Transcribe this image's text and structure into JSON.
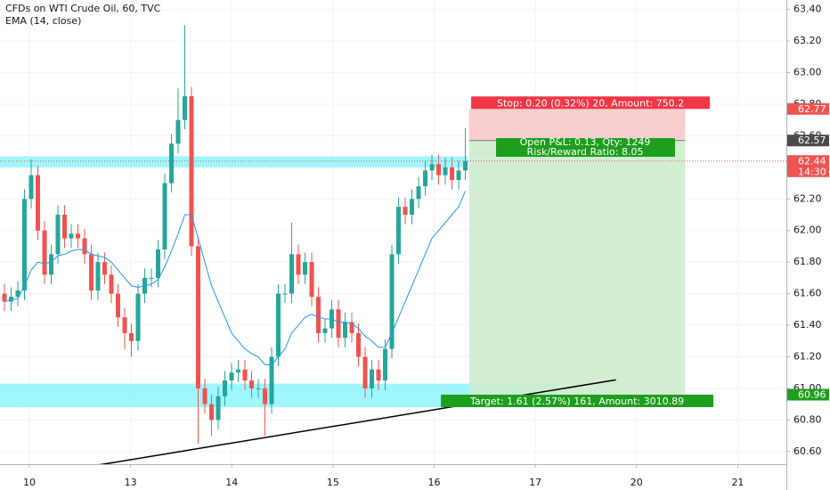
{
  "chart_data": {
    "type": "candlestick",
    "title": "CFDs on WTI Crude Oil, 60, TVC",
    "up_color": "#26a69a",
    "down_color": "#ef5350",
    "x": [
      -0.246,
      -0.18,
      -0.114,
      -0.048,
      0.018,
      0.084,
      0.15,
      0.216,
      0.282,
      0.348,
      0.414,
      0.48,
      0.546,
      0.612,
      0.678,
      0.744,
      0.81,
      0.876,
      0.942,
      1.008,
      1.074,
      1.14,
      1.206,
      1.272,
      1.338,
      1.404,
      1.47,
      1.536,
      1.602,
      1.668,
      1.734,
      1.8,
      1.866,
      1.932,
      1.998,
      2.064,
      2.13,
      2.196,
      2.262,
      2.328,
      2.394,
      2.46,
      2.526,
      2.592,
      2.658,
      2.724,
      2.79,
      2.856,
      2.922,
      2.988,
      3.054,
      3.12,
      3.186,
      3.252,
      3.318,
      3.384,
      3.45,
      3.516,
      3.582,
      3.648,
      3.714,
      3.78,
      3.846,
      3.912,
      3.978,
      4.044,
      4.11,
      4.176,
      4.242,
      4.308
    ],
    "open": [
      61.6,
      61.55,
      61.58,
      61.62,
      62.2,
      62.35,
      62.0,
      61.72,
      61.85,
      62.1,
      61.95,
      61.98,
      61.95,
      61.85,
      61.62,
      61.8,
      61.72,
      61.6,
      61.45,
      61.35,
      61.3,
      61.6,
      61.7,
      61.7,
      61.88,
      62.3,
      62.55,
      62.7,
      62.85,
      61.9,
      61.0,
      60.9,
      60.8,
      60.95,
      61.05,
      61.1,
      61.12,
      61.05,
      61.0,
      61.0,
      60.9,
      61.2,
      61.6,
      61.6,
      61.85,
      61.72,
      61.8,
      61.58,
      61.35,
      61.38,
      61.5,
      61.32,
      61.42,
      61.35,
      61.2,
      61.0,
      61.12,
      61.05,
      61.25,
      61.85,
      62.15,
      62.1,
      62.2,
      62.28,
      62.38,
      62.42,
      62.35,
      62.4,
      62.32,
      62.38
    ],
    "high": [
      61.66,
      61.64,
      61.68,
      62.26,
      62.45,
      62.41,
      62.06,
      61.91,
      62.16,
      62.16,
      62.04,
      62.04,
      62.01,
      61.91,
      61.86,
      61.86,
      61.78,
      61.66,
      61.51,
      61.41,
      61.66,
      61.76,
      61.76,
      61.94,
      62.36,
      62.61,
      62.9,
      63.3,
      62.91,
      61.96,
      61.06,
      60.96,
      61.01,
      61.11,
      61.16,
      61.18,
      61.18,
      61.11,
      61.06,
      61.06,
      61.26,
      61.66,
      61.66,
      62.05,
      61.91,
      61.86,
      61.86,
      61.64,
      61.44,
      61.56,
      61.56,
      61.48,
      61.48,
      61.41,
      61.26,
      61.18,
      61.18,
      61.31,
      61.91,
      62.21,
      62.21,
      62.26,
      62.34,
      62.44,
      62.48,
      62.48,
      62.46,
      62.46,
      62.44,
      62.65
    ],
    "low": [
      61.49,
      61.49,
      61.52,
      61.56,
      62.14,
      61.94,
      61.66,
      61.66,
      61.79,
      61.89,
      61.89,
      61.89,
      61.79,
      61.56,
      61.56,
      61.66,
      61.54,
      61.39,
      61.25,
      61.2,
      61.24,
      61.54,
      61.64,
      61.64,
      61.82,
      62.24,
      62.49,
      62.64,
      61.84,
      60.65,
      60.84,
      60.7,
      60.74,
      60.89,
      60.99,
      61.04,
      60.99,
      60.94,
      60.94,
      60.7,
      60.84,
      61.14,
      61.54,
      61.54,
      61.66,
      61.66,
      61.52,
      61.29,
      61.29,
      61.32,
      61.26,
      61.26,
      61.29,
      61.14,
      60.94,
      60.94,
      60.99,
      60.99,
      61.19,
      61.79,
      62.04,
      62.04,
      62.14,
      62.22,
      62.32,
      62.29,
      62.29,
      62.26,
      62.26,
      62.32
    ],
    "close": [
      61.55,
      61.58,
      61.62,
      62.2,
      62.35,
      62.0,
      61.72,
      61.85,
      62.1,
      61.95,
      61.98,
      61.95,
      61.85,
      61.62,
      61.8,
      61.72,
      61.6,
      61.45,
      61.35,
      61.3,
      61.6,
      61.7,
      61.7,
      61.88,
      62.3,
      62.55,
      62.7,
      62.85,
      61.9,
      61.0,
      60.9,
      60.8,
      60.95,
      61.05,
      61.1,
      61.12,
      61.05,
      61.0,
      61.0,
      60.9,
      61.2,
      61.6,
      61.6,
      61.85,
      61.72,
      61.8,
      61.58,
      61.35,
      61.38,
      61.5,
      61.32,
      61.42,
      61.35,
      61.2,
      61.0,
      61.12,
      61.05,
      61.25,
      61.85,
      62.15,
      62.1,
      62.2,
      62.28,
      62.38,
      62.42,
      62.35,
      62.4,
      62.32,
      62.38,
      62.44
    ],
    "series": [
      {
        "name": "EMA (14, close)",
        "color": "#2196f3",
        "values": [
          61.55,
          61.56,
          61.57,
          61.65,
          61.75,
          61.8,
          61.79,
          61.8,
          61.84,
          61.85,
          61.87,
          61.88,
          61.88,
          61.85,
          61.84,
          61.83,
          61.8,
          61.75,
          61.7,
          61.65,
          61.64,
          61.65,
          61.66,
          61.69,
          61.77,
          61.87,
          61.98,
          62.1,
          62.1,
          61.95,
          61.8,
          61.65,
          61.55,
          61.45,
          61.35,
          61.3,
          61.25,
          61.22,
          61.2,
          61.15,
          61.15,
          61.2,
          61.25,
          61.35,
          61.4,
          61.45,
          61.47,
          61.45,
          61.44,
          61.44,
          61.42,
          61.42,
          61.41,
          61.38,
          61.33,
          61.3,
          61.26,
          61.26,
          61.35,
          61.45,
          61.55,
          61.65,
          61.75,
          61.85,
          61.95,
          62.0,
          62.05,
          62.1,
          62.15,
          62.25
        ]
      }
    ],
    "xlim": [
      -0.29,
      7.48
    ],
    "xticks": [
      {
        "value": 0,
        "label": "10"
      },
      {
        "value": 1,
        "label": "13"
      },
      {
        "value": 2,
        "label": "14"
      },
      {
        "value": 3,
        "label": "15"
      },
      {
        "value": 4,
        "label": "16"
      },
      {
        "value": 5,
        "label": "17"
      },
      {
        "value": 6,
        "label": "20"
      },
      {
        "value": 7,
        "label": "21"
      }
    ],
    "ylim": [
      60.52,
      63.46
    ],
    "yticks": [
      {
        "value": 63.4,
        "label": "63.40"
      },
      {
        "value": 63.2,
        "label": "63.20"
      },
      {
        "value": 63.0,
        "label": "63.00"
      },
      {
        "value": 62.8,
        "label": "62.80"
      },
      {
        "value": 62.6,
        "label": "62.60"
      },
      {
        "value": 62.4,
        "label": "62.40"
      },
      {
        "value": 62.2,
        "label": "62.20"
      },
      {
        "value": 62.0,
        "label": "62.00"
      },
      {
        "value": 61.8,
        "label": "61.80"
      },
      {
        "value": 61.6,
        "label": "61.60"
      },
      {
        "value": 61.4,
        "label": "61.40"
      },
      {
        "value": 61.2,
        "label": "61.20"
      },
      {
        "value": 61.0,
        "label": "61.00"
      },
      {
        "value": 60.8,
        "label": "60.80"
      },
      {
        "value": 60.6,
        "label": "60.60"
      }
    ],
    "grid": true,
    "zones": [
      {
        "range": [
          62.4,
          62.47
        ],
        "x": [
          -0.29,
          4.33
        ]
      },
      {
        "range": [
          60.88,
          61.03
        ],
        "x": [
          -0.29,
          5.23
        ]
      }
    ],
    "zone_color": "#7ff3fb",
    "trend_line": {
      "x": [
        0.325,
        5.796
      ],
      "y": [
        60.477,
        61.054
      ],
      "color": "#000000"
    },
    "position": {
      "entry": 62.57,
      "stop": 62.77,
      "target": 60.96,
      "x": [
        4.345,
        6.48
      ],
      "stop_label": "Stop: 0.20 (0.32%) 20, Amount: 750.2",
      "pnl_label": "Open P&L: 0.13, Qty: 1249",
      "ratio_label": "Risk/Reward Ratio: 8.05",
      "target_label": "Target: 1.61 (2.57%) 161, Amount: 3010.89"
    },
    "price_tags": [
      {
        "value": 62.77,
        "color": "#ef5350"
      },
      {
        "value": 62.57,
        "color": "#4a4a4a"
      },
      {
        "value": 62.44,
        "color": "#ef5350"
      },
      {
        "value": 60.96,
        "color": "#1e9e1e"
      }
    ],
    "countdown": "14:30"
  }
}
